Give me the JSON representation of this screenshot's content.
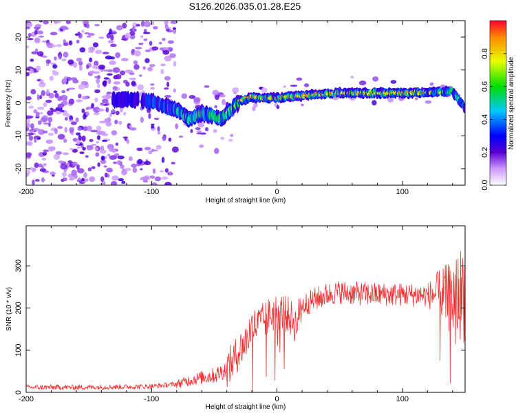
{
  "title": "S126.2026.035.01.28.E25",
  "chart_data": [
    {
      "type": "heatmap",
      "name": "spectrogram",
      "xlabel": "Height of straight line (km)",
      "ylabel": "Frequency (Hz)",
      "xlim": [
        -200,
        150
      ],
      "ylim": [
        -25,
        25
      ],
      "x_ticks": [
        -200,
        -100,
        0,
        100
      ],
      "y_ticks": [
        -20,
        -10,
        0,
        10,
        20
      ],
      "colorbar": {
        "label": "Normalized spectral amplitude",
        "range": [
          0.0,
          1.0
        ],
        "ticks": [
          "0.0",
          "0.2",
          "0.4",
          "0.6",
          "0.8"
        ]
      },
      "signal_trace": {
        "x": [
          -200,
          -120,
          -100,
          -90,
          -80,
          -75,
          -70,
          -60,
          -50,
          -45,
          -40,
          -35,
          -30,
          -20,
          -10,
          0,
          20,
          40,
          60,
          80,
          100,
          120,
          140,
          150
        ],
        "freq": [
          0,
          1,
          0.5,
          -1,
          -2,
          -3.5,
          -5,
          -3,
          -4,
          -5,
          -3.5,
          -1.5,
          0.5,
          1.8,
          1.5,
          1.5,
          2.2,
          2.8,
          3.0,
          3.0,
          3.0,
          3.2,
          3.5,
          -1.5
        ],
        "peak_amplitude": [
          0.2,
          0.3,
          0.35,
          0.45,
          0.5,
          0.55,
          0.5,
          0.55,
          0.6,
          0.62,
          0.7,
          0.8,
          0.85,
          0.95,
          0.9,
          0.9,
          0.9,
          0.95,
          0.9,
          0.95,
          0.9,
          0.95,
          0.6,
          0.4
        ]
      }
    },
    {
      "type": "line",
      "name": "snr",
      "xlabel": "Height of straight line (km)",
      "ylabel": "SNR (10 * v/v)",
      "xlim": [
        -200,
        150
      ],
      "ylim": [
        0,
        395
      ],
      "x_ticks": [
        -200,
        -100,
        0,
        100
      ],
      "y_ticks": [
        0,
        100,
        200,
        300
      ],
      "color": "#f03030",
      "series": [
        {
          "name": "SNR",
          "x": [
            -200,
            -150,
            -100,
            -80,
            -70,
            -60,
            -50,
            -40,
            -35,
            -30,
            -25,
            -20,
            -15,
            -10,
            -5,
            0,
            5,
            10,
            15,
            20,
            30,
            40,
            50,
            60,
            80,
            100,
            120,
            130,
            140,
            150
          ],
          "y": [
            12,
            12,
            14,
            20,
            28,
            35,
            40,
            55,
            75,
            100,
            120,
            155,
            160,
            170,
            185,
            190,
            190,
            180,
            160,
            205,
            220,
            232,
            238,
            235,
            232,
            232,
            230,
            235,
            220,
            240
          ]
        }
      ]
    }
  ]
}
